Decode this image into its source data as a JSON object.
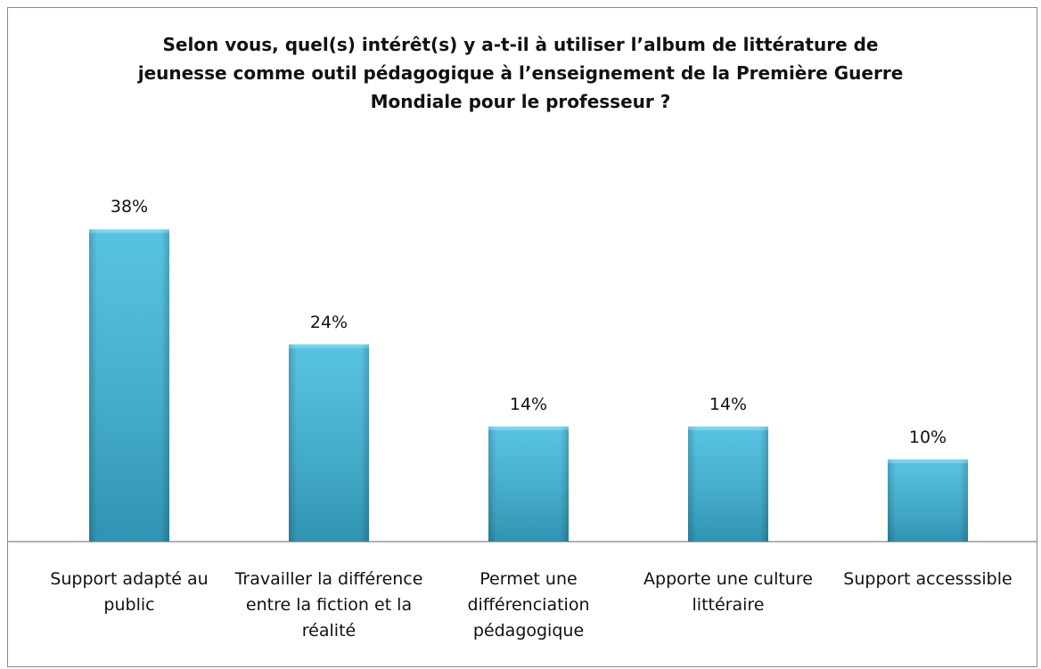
{
  "chart_data": {
    "type": "bar",
    "title": "Selon vous, quel(s) intérêt(s) y a-t-il à utiliser l’album de littérature de jeunesse comme outil pédagogique à l’enseignement de la Première Guerre Mondiale pour le professeur ?",
    "categories": [
      "Support adapté au public",
      "Travailler la différence entre la fiction et la réalité",
      "Permet une différenciation pédagogique",
      "Apporte une culture littéraire",
      "Support accesssible"
    ],
    "values": [
      38,
      24,
      14,
      14,
      10
    ],
    "value_labels": [
      "38%",
      "24%",
      "14%",
      "14%",
      "10%"
    ],
    "color": "#3bb8dd",
    "ylim": [
      0,
      40
    ]
  }
}
